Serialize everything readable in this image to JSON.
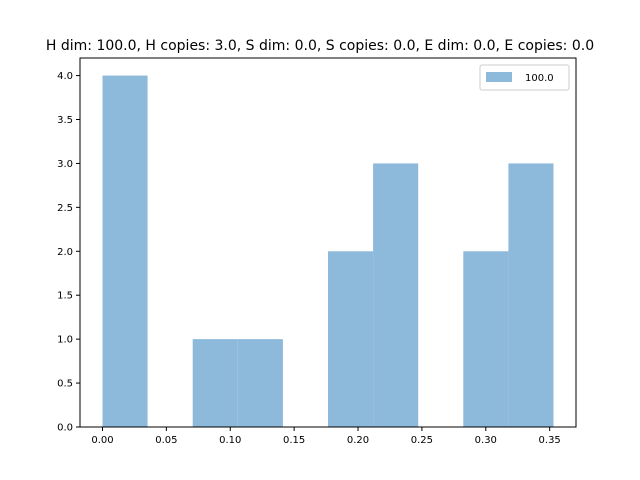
{
  "chart_data": {
    "type": "bar",
    "title": "H dim: 100.0, H copies: 3.0, S dim: 0.0, S copies: 0.0, E dim: 0.0, E copies: 0.0",
    "xlabel": "",
    "ylabel": "",
    "bin_edges": [
      0.0,
      0.0353,
      0.0706,
      0.1059,
      0.1412,
      0.1765,
      0.2118,
      0.2471,
      0.2824,
      0.3177,
      0.353
    ],
    "counts": [
      4,
      0,
      1,
      1,
      0,
      2,
      3,
      0,
      2,
      3
    ],
    "series": [
      {
        "name": "100.0",
        "values": [
          4,
          0,
          1,
          1,
          0,
          2,
          3,
          0,
          2,
          3
        ]
      }
    ],
    "xlim": [
      -0.0176,
      0.3706
    ],
    "ylim": [
      0,
      4.2
    ],
    "xticks": [
      "0.00",
      "0.05",
      "0.10",
      "0.15",
      "0.20",
      "0.25",
      "0.30",
      "0.35"
    ],
    "xtick_values": [
      0.0,
      0.05,
      0.1,
      0.15,
      0.2,
      0.25,
      0.3,
      0.35
    ],
    "yticks": [
      "0.0",
      "0.5",
      "1.0",
      "1.5",
      "2.0",
      "2.5",
      "3.0",
      "3.5",
      "4.0"
    ],
    "ytick_values": [
      0.0,
      0.5,
      1.0,
      1.5,
      2.0,
      2.5,
      3.0,
      3.5,
      4.0
    ],
    "grid": false,
    "legend_position": "top-right",
    "bar_color": "#8db9da"
  }
}
